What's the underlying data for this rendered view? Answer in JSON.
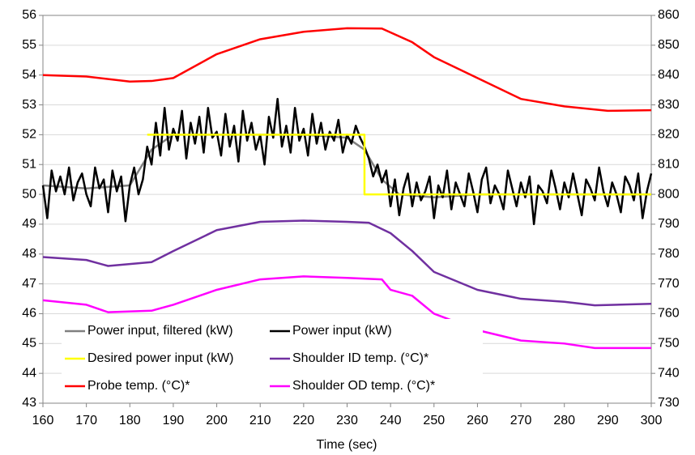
{
  "chart_data": {
    "type": "line",
    "x_label": "Time (sec)",
    "xlim": [
      160,
      300
    ],
    "xticks": [
      160,
      170,
      180,
      190,
      200,
      210,
      220,
      230,
      240,
      250,
      260,
      270,
      280,
      290,
      300
    ],
    "ylim": [
      43,
      56
    ],
    "yticks": [
      43,
      44,
      45,
      46,
      47,
      48,
      49,
      50,
      51,
      52,
      53,
      54,
      55,
      56
    ],
    "y2lim": [
      730,
      860
    ],
    "y2ticks": [
      730,
      740,
      750,
      760,
      770,
      780,
      790,
      800,
      810,
      820,
      830,
      840,
      850,
      860
    ],
    "grid": true,
    "legend": "lower left",
    "series": [
      {
        "name": "Power input, filtered (kW)",
        "color": "#808080",
        "x": [
          160,
          170,
          180,
          185,
          190,
          200,
          210,
          220,
          230,
          234,
          238,
          242,
          250,
          260,
          270,
          280,
          290,
          300
        ],
        "values": [
          50.3,
          50.2,
          50.3,
          51.5,
          52,
          52,
          52,
          52,
          51.9,
          51.5,
          50.5,
          50,
          49.9,
          50,
          50,
          50,
          50,
          50
        ]
      },
      {
        "name": "Power input (kW)",
        "color": "#000000",
        "x": [
          160,
          161,
          162,
          163,
          164,
          165,
          166,
          167,
          168,
          169,
          170,
          171,
          172,
          173,
          174,
          175,
          176,
          177,
          178,
          179,
          180,
          181,
          182,
          183,
          184,
          185,
          186,
          187,
          188,
          189,
          190,
          191,
          192,
          193,
          194,
          195,
          196,
          197,
          198,
          199,
          200,
          201,
          202,
          203,
          204,
          205,
          206,
          207,
          208,
          209,
          210,
          211,
          212,
          213,
          214,
          215,
          216,
          217,
          218,
          219,
          220,
          221,
          222,
          223,
          224,
          225,
          226,
          227,
          228,
          229,
          230,
          231,
          232,
          233,
          234,
          235,
          236,
          237,
          238,
          239,
          240,
          241,
          242,
          243,
          244,
          245,
          246,
          247,
          248,
          249,
          250,
          251,
          252,
          253,
          254,
          255,
          256,
          257,
          258,
          259,
          260,
          261,
          262,
          263,
          264,
          265,
          266,
          267,
          268,
          269,
          270,
          271,
          272,
          273,
          274,
          275,
          276,
          277,
          278,
          279,
          280,
          281,
          282,
          283,
          284,
          285,
          286,
          287,
          288,
          289,
          290,
          291,
          292,
          293,
          294,
          295,
          296,
          297,
          298,
          299,
          300
        ],
        "values": [
          50.3,
          49.2,
          50.8,
          50.1,
          50.6,
          50.0,
          50.9,
          49.8,
          50.4,
          50.7,
          50.0,
          49.6,
          50.9,
          50.2,
          50.5,
          49.4,
          50.8,
          50.1,
          50.6,
          49.1,
          50.3,
          50.9,
          50.0,
          50.5,
          51.6,
          51.0,
          52.4,
          51.3,
          52.9,
          51.5,
          52.2,
          51.8,
          52.8,
          51.2,
          52.4,
          51.7,
          52.6,
          51.4,
          52.9,
          51.9,
          52.1,
          51.3,
          52.7,
          51.6,
          52.3,
          51.1,
          52.8,
          51.8,
          52.4,
          51.5,
          52.0,
          51.0,
          52.6,
          51.9,
          53.2,
          51.6,
          52.3,
          51.4,
          52.9,
          51.8,
          52.2,
          51.3,
          52.7,
          51.7,
          52.4,
          51.5,
          52.1,
          51.8,
          52.5,
          51.4,
          52.0,
          51.7,
          52.3,
          51.9,
          51.6,
          51.2,
          50.6,
          51.0,
          50.4,
          50.8,
          49.6,
          50.5,
          49.3,
          50.2,
          50.7,
          49.6,
          50.4,
          49.8,
          50.1,
          50.6,
          49.2,
          50.3,
          49.9,
          50.8,
          49.5,
          50.4,
          50.0,
          49.6,
          50.7,
          50.1,
          49.4,
          50.5,
          50.9,
          49.7,
          50.3,
          50.0,
          49.5,
          50.8,
          50.2,
          49.6,
          50.4,
          49.9,
          50.6,
          49.0,
          50.3,
          50.1,
          49.7,
          50.8,
          50.2,
          49.5,
          50.4,
          49.9,
          50.7,
          50.0,
          49.3,
          50.5,
          50.2,
          49.8,
          50.9,
          50.1,
          49.6,
          50.4,
          50.0,
          49.4,
          50.6,
          50.3,
          49.8,
          50.7,
          49.2,
          50.1,
          50.7
        ]
      },
      {
        "name": "Desired power input (kW)",
        "color": "#ffff00",
        "x": [
          184,
          234,
          234,
          300
        ],
        "values": [
          52,
          52,
          50,
          50
        ]
      },
      {
        "name": "Shoulder ID temp. (°C)*",
        "color": "#7030a0",
        "axis": "y2",
        "x": [
          160,
          170,
          175,
          185,
          190,
          200,
          210,
          220,
          230,
          235,
          240,
          245,
          250,
          260,
          270,
          280,
          287,
          300
        ],
        "values": [
          779,
          778,
          776,
          777.3,
          781,
          788,
          790.8,
          791.2,
          790.8,
          790.5,
          787,
          781,
          774,
          768,
          765,
          764,
          762.8,
          763.3
        ]
      },
      {
        "name": "Probe temp. (°C)*",
        "color": "#ff0000",
        "axis": "y2",
        "x": [
          160,
          170,
          180,
          185,
          190,
          200,
          210,
          220,
          230,
          238,
          245,
          250,
          260,
          270,
          280,
          290,
          300
        ],
        "values": [
          840,
          839.5,
          837.8,
          838,
          839,
          847,
          852,
          854.5,
          855.7,
          855.6,
          851,
          846,
          839,
          832,
          829.5,
          828,
          828.2
        ]
      },
      {
        "name": "Shoulder OD temp. (°C)*",
        "color": "#ff00ff",
        "axis": "y2",
        "x": [
          160,
          170,
          175,
          185,
          190,
          200,
          210,
          220,
          230,
          238,
          240,
          245,
          250,
          260,
          270,
          280,
          287,
          300
        ],
        "values": [
          764.5,
          763,
          760.5,
          761,
          763,
          768,
          771.5,
          772.5,
          772,
          771.5,
          768,
          766,
          760,
          754.5,
          751,
          750,
          748.5,
          748.5
        ]
      }
    ]
  }
}
